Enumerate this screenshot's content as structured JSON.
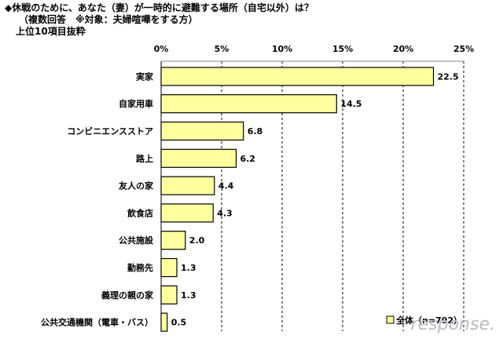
{
  "header": {
    "title": "◆休戦のために、あなた（妻）が一時的に避難する場所（自宅以外）は？",
    "note": "（複数回答　※対象：夫婦喧嘩をする方）",
    "subset": "上位10項目抜粋"
  },
  "watermark": "response.",
  "colors": {
    "bar_fill": "#FFFFA0",
    "bar_stroke": "#000000",
    "grid": "#000000"
  },
  "chart_data": {
    "type": "bar",
    "orientation": "horizontal",
    "categories": [
      "実家",
      "自家用車",
      "コンビニエンスストア",
      "路上",
      "友人の家",
      "飲食店",
      "公共施設",
      "勤務先",
      "義理の親の家",
      "公共交通機関（電車・バス）"
    ],
    "series": [
      {
        "name": "全体（n=792）",
        "values": [
          22.5,
          14.5,
          6.8,
          6.2,
          4.4,
          4.3,
          2.0,
          1.3,
          1.3,
          0.5
        ]
      }
    ],
    "value_labels": [
      "22.5",
      "14.5",
      "6.8",
      "6.2",
      "4.4",
      "4.3",
      "2.0",
      "1.3",
      "1.3",
      "0.5"
    ],
    "xlim": [
      0,
      25
    ],
    "xticks": [
      0,
      5,
      10,
      15,
      20,
      25
    ],
    "xtick_labels": [
      "0%",
      "5%",
      "10%",
      "15%",
      "20%",
      "25%"
    ],
    "grid": "vertical dashed",
    "legend_position": "bottom-right"
  }
}
